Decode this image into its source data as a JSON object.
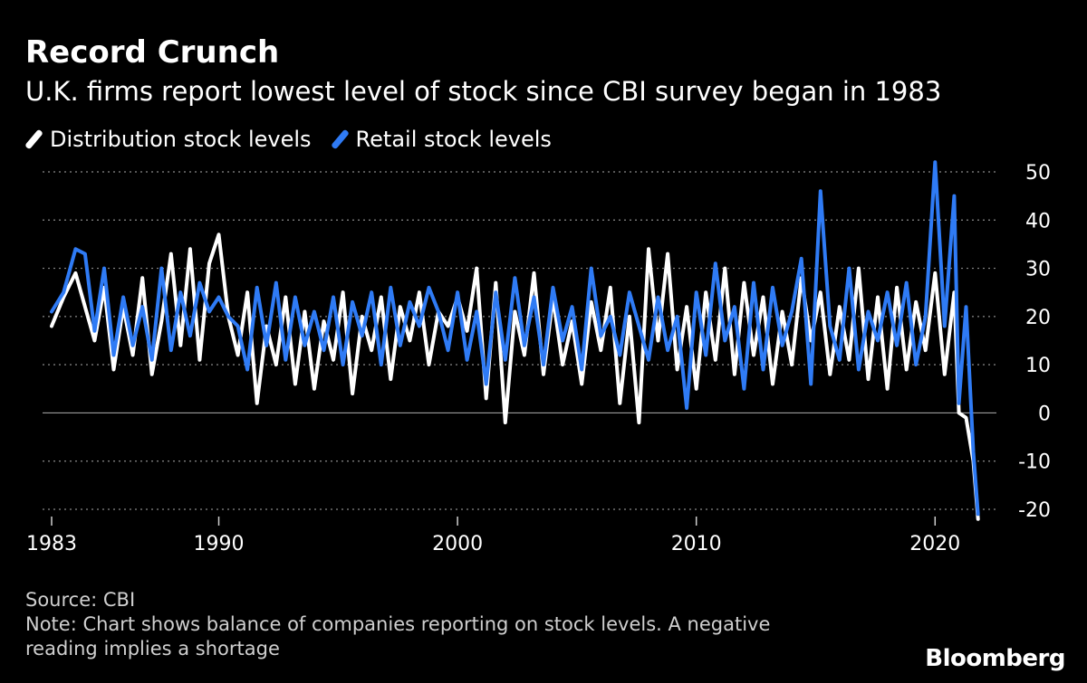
{
  "title": "Record Crunch",
  "subtitle": "U.K. firms report lowest level of stock since CBI survey began in 1983",
  "legend": [
    {
      "label": "Distribution stock levels",
      "color": "#ffffff"
    },
    {
      "label": "Retail stock levels",
      "color": "#2f7bf5"
    }
  ],
  "source": "Source: CBI",
  "note": "Note: Chart shows balance of companies reporting on stock levels. A negative reading implies a shortage",
  "brand": "Bloomberg",
  "chart_data": {
    "type": "line",
    "title": "Record Crunch",
    "subtitle": "U.K. firms report lowest level of stock since CBI survey began in 1983",
    "xlabel": "",
    "ylabel": "",
    "xlim": [
      1983,
      2022
    ],
    "ylim": [
      -20,
      50
    ],
    "x_ticks": [
      {
        "value": 1983,
        "label": "1983"
      },
      {
        "value": 1990,
        "label": "1990"
      },
      {
        "value": 2000,
        "label": "2000"
      },
      {
        "value": 2010,
        "label": "2010"
      },
      {
        "value": 2020,
        "label": "2020"
      }
    ],
    "y_ticks": [
      {
        "value": 50,
        "label": "50"
      },
      {
        "value": 40,
        "label": "40"
      },
      {
        "value": 30,
        "label": "30"
      },
      {
        "value": 20,
        "label": "20"
      },
      {
        "value": 10,
        "label": "10"
      },
      {
        "value": 0,
        "label": "0"
      },
      {
        "value": -10,
        "label": "-10"
      },
      {
        "value": -20,
        "label": "-20"
      }
    ],
    "grid": "horizontal dotted",
    "legend_position": "top-left",
    "series": [
      {
        "name": "Distribution stock levels",
        "color": "#ffffff",
        "x": [
          1983.0,
          1983.5,
          1984.0,
          1984.4,
          1984.8,
          1985.2,
          1985.6,
          1986.0,
          1986.4,
          1986.8,
          1987.2,
          1987.6,
          1988.0,
          1988.4,
          1988.8,
          1989.2,
          1989.6,
          1990.0,
          1990.4,
          1990.8,
          1991.2,
          1991.6,
          1992.0,
          1992.4,
          1992.8,
          1993.2,
          1993.6,
          1994.0,
          1994.4,
          1994.8,
          1995.2,
          1995.6,
          1996.0,
          1996.4,
          1996.8,
          1997.2,
          1997.6,
          1998.0,
          1998.4,
          1998.8,
          1999.2,
          1999.6,
          2000.0,
          2000.4,
          2000.8,
          2001.2,
          2001.6,
          2002.0,
          2002.4,
          2002.8,
          2003.2,
          2003.6,
          2004.0,
          2004.4,
          2004.8,
          2005.2,
          2005.6,
          2006.0,
          2006.4,
          2006.8,
          2007.2,
          2007.6,
          2008.0,
          2008.4,
          2008.8,
          2009.2,
          2009.6,
          2010.0,
          2010.4,
          2010.8,
          2011.2,
          2011.6,
          2012.0,
          2012.4,
          2012.8,
          2013.2,
          2013.6,
          2014.0,
          2014.4,
          2014.8,
          2015.2,
          2015.6,
          2016.0,
          2016.4,
          2016.8,
          2017.2,
          2017.6,
          2018.0,
          2018.4,
          2018.8,
          2019.2,
          2019.6,
          2020.0,
          2020.4,
          2020.8,
          2021.0,
          2021.3,
          2021.6,
          2021.8
        ],
        "values": [
          18,
          24,
          29,
          22,
          15,
          26,
          9,
          22,
          12,
          28,
          8,
          19,
          33,
          14,
          34,
          11,
          31,
          37,
          20,
          12,
          25,
          2,
          18,
          10,
          24,
          6,
          21,
          5,
          19,
          11,
          25,
          4,
          20,
          13,
          24,
          7,
          22,
          15,
          25,
          10,
          21,
          18,
          24,
          17,
          30,
          3,
          27,
          -2,
          21,
          12,
          29,
          8,
          24,
          10,
          19,
          6,
          23,
          13,
          26,
          2,
          20,
          -2,
          34,
          15,
          33,
          9,
          22,
          5,
          25,
          11,
          30,
          8,
          27,
          12,
          24,
          6,
          21,
          10,
          28,
          15,
          25,
          8,
          22,
          11,
          30,
          7,
          24,
          5,
          26,
          9,
          23,
          13,
          29,
          8,
          25,
          0,
          -1,
          -10,
          -22
        ]
      },
      {
        "name": "Retail stock levels",
        "color": "#2f7bf5",
        "x": [
          1983.0,
          1983.5,
          1984.0,
          1984.4,
          1984.8,
          1985.2,
          1985.6,
          1986.0,
          1986.4,
          1986.8,
          1987.2,
          1987.6,
          1988.0,
          1988.4,
          1988.8,
          1989.2,
          1989.6,
          1990.0,
          1990.4,
          1990.8,
          1991.2,
          1991.6,
          1992.0,
          1992.4,
          1992.8,
          1993.2,
          1993.6,
          1994.0,
          1994.4,
          1994.8,
          1995.2,
          1995.6,
          1996.0,
          1996.4,
          1996.8,
          1997.2,
          1997.6,
          1998.0,
          1998.4,
          1998.8,
          1999.2,
          1999.6,
          2000.0,
          2000.4,
          2000.8,
          2001.2,
          2001.6,
          2002.0,
          2002.4,
          2002.8,
          2003.2,
          2003.6,
          2004.0,
          2004.4,
          2004.8,
          2005.2,
          2005.6,
          2006.0,
          2006.4,
          2006.8,
          2007.2,
          2007.6,
          2008.0,
          2008.4,
          2008.8,
          2009.2,
          2009.6,
          2010.0,
          2010.4,
          2010.8,
          2011.2,
          2011.6,
          2012.0,
          2012.4,
          2012.8,
          2013.2,
          2013.6,
          2014.0,
          2014.4,
          2014.8,
          2015.2,
          2015.6,
          2016.0,
          2016.4,
          2016.8,
          2017.2,
          2017.6,
          2018.0,
          2018.4,
          2018.8,
          2019.2,
          2019.6,
          2020.0,
          2020.4,
          2020.8,
          2021.0,
          2021.3,
          2021.6,
          2021.8
        ],
        "values": [
          21,
          25,
          34,
          33,
          17,
          30,
          12,
          24,
          14,
          22,
          11,
          30,
          13,
          25,
          16,
          27,
          21,
          24,
          20,
          18,
          9,
          26,
          14,
          27,
          11,
          24,
          14,
          21,
          13,
          24,
          10,
          23,
          16,
          25,
          10,
          26,
          14,
          23,
          18,
          26,
          21,
          13,
          25,
          11,
          21,
          6,
          25,
          11,
          28,
          14,
          24,
          10,
          26,
          15,
          22,
          9,
          30,
          16,
          20,
          12,
          25,
          18,
          11,
          24,
          13,
          20,
          1,
          25,
          12,
          31,
          15,
          22,
          5,
          27,
          9,
          26,
          14,
          21,
          32,
          6,
          46,
          18,
          11,
          30,
          9,
          21,
          15,
          25,
          14,
          27,
          10,
          20,
          52,
          18,
          45,
          2,
          22,
          -8,
          -21
        ]
      }
    ]
  }
}
